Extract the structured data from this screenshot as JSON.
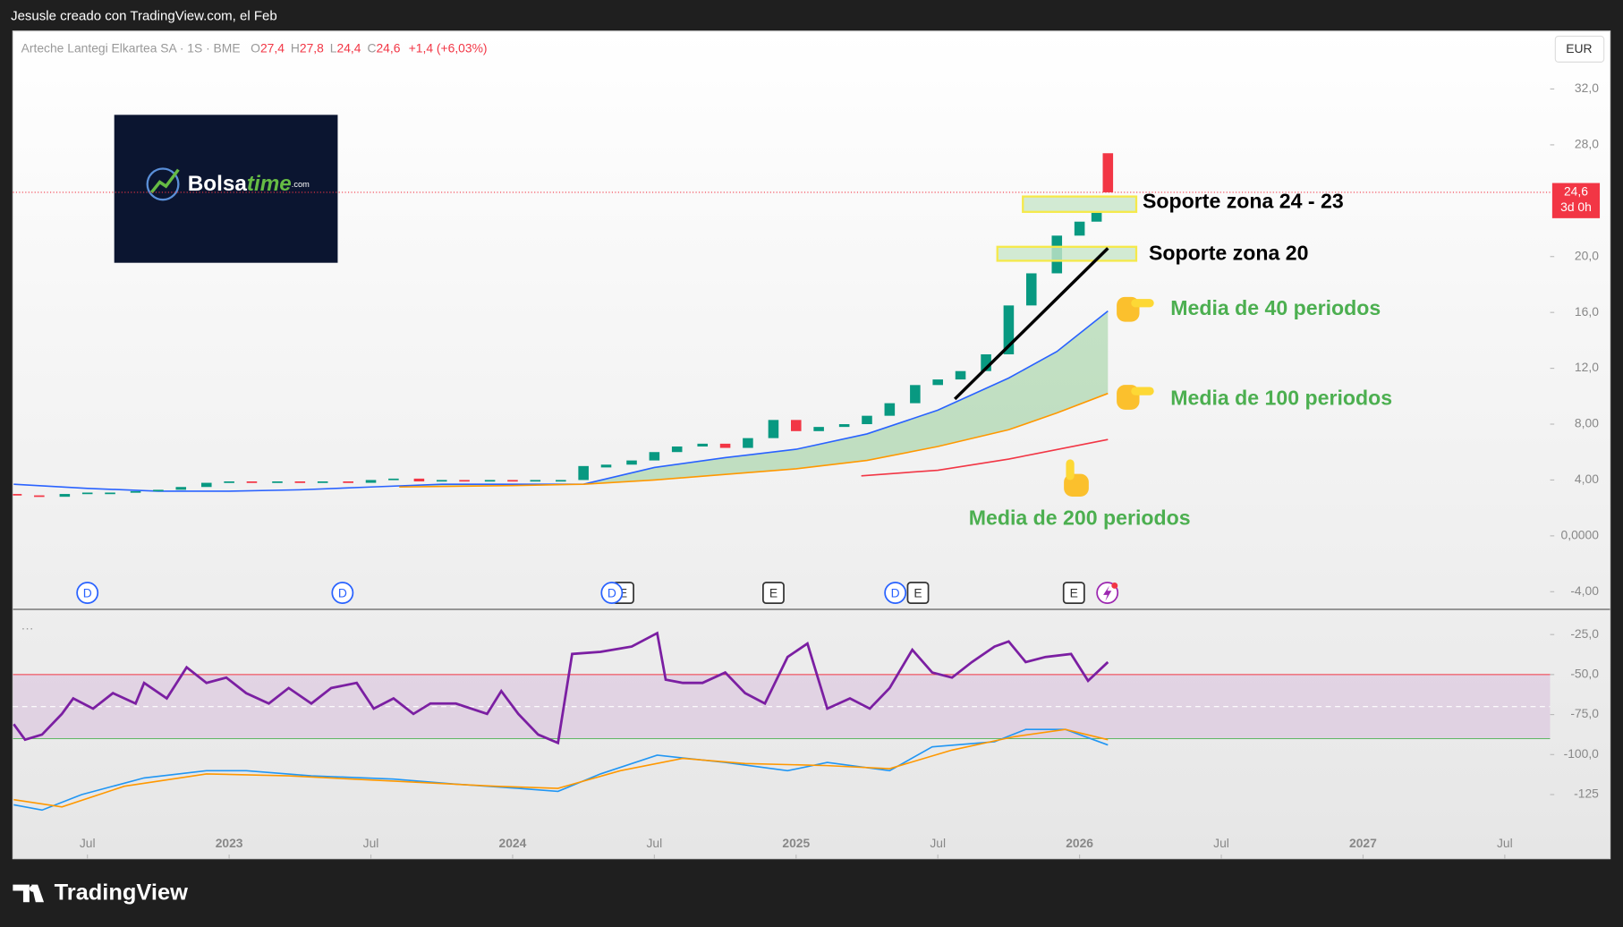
{
  "header": {
    "credit": "Jesusle creado con TradingView.com, el Feb"
  },
  "logo": {
    "name": "Bolsa",
    "accent": "time",
    "suffix": ".com"
  },
  "footer": {
    "brand": "TradingView"
  },
  "chart_data": [
    {
      "type": "candlestick",
      "title": "Arteche Lantegi Elkartea SA · 1S · BME",
      "legend": [
        {
          "key": "O",
          "value": 27.4,
          "label": "27,4"
        },
        {
          "key": "H",
          "value": 27.8,
          "label": "27,8"
        },
        {
          "key": "L",
          "value": 24.4,
          "label": "24,4"
        },
        {
          "key": "C",
          "value": 24.6,
          "label": "24,6"
        }
      ],
      "change": "+1,4 (+6,03%)",
      "currency": "EUR",
      "up_color": "#089981",
      "down_color": "#f23645",
      "x": [
        2022.25,
        2022.33,
        2022.42,
        2022.5,
        2022.58,
        2022.67,
        2022.75,
        2022.83,
        2022.92,
        2023.0,
        2023.08,
        2023.17,
        2023.25,
        2023.33,
        2023.42,
        2023.5,
        2023.58,
        2023.67,
        2023.75,
        2023.83,
        2023.92,
        2024.0,
        2024.08,
        2024.17,
        2024.25,
        2024.33,
        2024.42,
        2024.5,
        2024.58,
        2024.67,
        2024.75,
        2024.83,
        2024.92,
        2025.0,
        2025.08,
        2025.17,
        2025.25,
        2025.33,
        2025.42,
        2025.5,
        2025.58,
        2025.67,
        2025.75,
        2025.83,
        2025.92,
        2026.0,
        2026.06,
        2026.1
      ],
      "open": [
        3.0,
        2.9,
        2.8,
        3.0,
        3.05,
        3.1,
        3.2,
        3.3,
        3.5,
        3.8,
        3.9,
        3.8,
        3.9,
        3.8,
        3.9,
        3.8,
        4.0,
        4.1,
        3.9,
        4.0,
        3.9,
        4.0,
        3.9,
        3.95,
        4.0,
        4.9,
        5.1,
        5.4,
        6.0,
        6.4,
        6.6,
        6.3,
        7.0,
        8.3,
        7.5,
        7.8,
        8.0,
        8.6,
        9.5,
        10.8,
        11.2,
        11.8,
        13.0,
        16.5,
        18.8,
        21.5,
        22.5,
        27.4
      ],
      "close": [
        2.9,
        2.8,
        3.0,
        3.1,
        3.1,
        3.2,
        3.3,
        3.5,
        3.8,
        3.9,
        3.8,
        3.9,
        3.8,
        3.9,
        3.8,
        4.0,
        4.1,
        3.9,
        4.0,
        3.9,
        4.0,
        3.9,
        4.0,
        4.0,
        5.0,
        5.1,
        5.4,
        6.0,
        6.4,
        6.6,
        6.3,
        7.0,
        8.3,
        7.5,
        7.8,
        8.0,
        8.6,
        9.5,
        10.8,
        11.2,
        11.8,
        13.0,
        16.5,
        18.8,
        21.5,
        22.5,
        23.2,
        24.6
      ],
      "series": [
        {
          "color": "#2962ff",
          "x": [
            2022.24,
            2022.5,
            2022.75,
            2023.0,
            2023.25,
            2023.5,
            2023.75,
            2024.0,
            2024.25,
            2024.5,
            2024.75,
            2025.0,
            2025.25,
            2025.5,
            2025.75,
            2025.92,
            2026.1
          ],
          "values": [
            3.7,
            3.4,
            3.2,
            3.2,
            3.3,
            3.5,
            3.7,
            3.7,
            3.7,
            4.9,
            5.6,
            6.2,
            7.3,
            9.0,
            11.3,
            13.2,
            16.1
          ]
        },
        {
          "color": "#ff9800",
          "x": [
            2023.6,
            2024.0,
            2024.25,
            2024.5,
            2024.75,
            2025.0,
            2025.25,
            2025.5,
            2025.75,
            2025.92,
            2026.1
          ],
          "values": [
            3.5,
            3.6,
            3.7,
            4.0,
            4.4,
            4.8,
            5.4,
            6.4,
            7.6,
            8.8,
            10.2
          ]
        },
        {
          "color": "#f23645",
          "x": [
            2025.23,
            2025.5,
            2025.75,
            2026.1
          ],
          "values": [
            4.3,
            4.7,
            5.5,
            6.9
          ]
        }
      ],
      "band_color": "#4caf50",
      "xlim": [
        2022.237,
        2027.66
      ],
      "ylim": [
        -5.19,
        36.15
      ],
      "xticks": [
        {
          "value": 2022.5,
          "label": "Jul"
        },
        2023,
        {
          "value": 2023.5,
          "label": "Jul"
        },
        2024,
        {
          "value": 2024.5,
          "label": "Jul"
        },
        2025,
        {
          "value": 2025.5,
          "label": "Jul"
        },
        2026,
        {
          "value": 2026.5,
          "label": "Jul"
        },
        2027,
        {
          "value": 2027.5,
          "label": "Jul"
        }
      ],
      "yticks": [
        {
          "value": 32,
          "label": "32,0"
        },
        {
          "value": 28,
          "label": "28,0"
        },
        {
          "value": 20,
          "label": "20,0"
        },
        {
          "value": 16,
          "label": "16,0"
        },
        {
          "value": 12,
          "label": "12,0"
        },
        {
          "value": 8,
          "label": "8,00"
        },
        {
          "value": 4,
          "label": "4,00"
        },
        {
          "value": 0,
          "label": "0,0000"
        },
        {
          "value": -4,
          "label": "-4,00"
        }
      ],
      "grid": false,
      "last_price": {
        "value": 24.6,
        "label": "24,6"
      },
      "countdown": "3d 0h",
      "zones": [
        {
          "x": [
            2025.8,
            2026.2
          ],
          "low": 23.2,
          "high": 24.3
        },
        {
          "x": [
            2025.71,
            2026.2
          ],
          "low": 19.7,
          "high": 20.7
        }
      ],
      "trendline": {
        "x": [
          2025.56,
          2026.1
        ],
        "values": [
          9.8,
          20.6
        ]
      },
      "annotations": [
        {
          "text": "Soporte zona 24 - 23",
          "color": "#000000"
        },
        {
          "text": "Soporte zona 20",
          "color": "#000000"
        },
        {
          "text": "Media de 40 periodos",
          "color": "#4caf50"
        },
        {
          "text": "Media de 100 periodos",
          "color": "#4caf50"
        },
        {
          "text": "Media de 200 periodos",
          "color": "#4caf50"
        }
      ],
      "events": [
        {
          "x": 2022.5,
          "label": "D"
        },
        {
          "x": 2023.4,
          "label": "D"
        },
        {
          "x": 2024.39,
          "label": "E"
        },
        {
          "x": 2024.35,
          "label": "D"
        },
        {
          "x": 2024.92,
          "label": "E"
        },
        {
          "x": 2025.43,
          "label": "E"
        },
        {
          "x": 2025.35,
          "label": "D"
        },
        {
          "x": 2025.98,
          "label": "E"
        }
      ]
    },
    {
      "type": "line",
      "menu": "···",
      "series": [
        {
          "color": "#7b1fa2",
          "x": [
            2022.24,
            2022.28,
            2022.34,
            2022.41,
            2022.45,
            2022.52,
            2022.59,
            2022.67,
            2022.7,
            2022.78,
            2022.85,
            2022.92,
            2022.99,
            2023.06,
            2023.14,
            2023.21,
            2023.29,
            2023.36,
            2023.45,
            2023.51,
            2023.58,
            2023.65,
            2023.71,
            2023.8,
            2023.91,
            2023.96,
            2024.02,
            2024.09,
            2024.16,
            2024.21,
            2024.31,
            2024.42,
            2024.51,
            2024.54,
            2024.6,
            2024.67,
            2024.75,
            2024.82,
            2024.89,
            2024.97,
            2025.04,
            2025.11,
            2025.19,
            2025.26,
            2025.33,
            2025.41,
            2025.48,
            2025.55,
            2025.62,
            2025.7,
            2025.75,
            2025.81,
            2025.88,
            2025.97,
            2026.03,
            2026.1
          ],
          "values": [
            -81.0,
            -90.7,
            -87.5,
            -74.6,
            -64.9,
            -71.3,
            -61.6,
            -68.1,
            -55.2,
            -64.9,
            -45.5,
            -55.2,
            -51.9,
            -61.6,
            -68.1,
            -58.4,
            -68.1,
            -58.4,
            -55.2,
            -71.3,
            -64.9,
            -74.6,
            -68.1,
            -68.1,
            -74.6,
            -60.3,
            -74.6,
            -87.5,
            -92.7,
            -37.1,
            -35.8,
            -32.5,
            -24.1,
            -53.2,
            -55.2,
            -55.2,
            -48.7,
            -61.6,
            -68.1,
            -39.0,
            -30.6,
            -71.3,
            -64.9,
            -71.3,
            -58.4,
            -34.5,
            -48.7,
            -51.9,
            -42.2,
            -32.5,
            -29.3,
            -42.2,
            -39.0,
            -37.1,
            -53.9,
            -42.2
          ]
        },
        {
          "color": "#2196f3",
          "x": [
            2022.24,
            2022.34,
            2022.48,
            2022.7,
            2022.92,
            2023.06,
            2023.29,
            2023.58,
            2023.8,
            2024.02,
            2024.16,
            2024.31,
            2024.51,
            2024.75,
            2024.97,
            2025.11,
            2025.33,
            2025.48,
            2025.7,
            2025.81,
            2025.95,
            2026.1
          ],
          "values": [
            -131.4,
            -134.7,
            -125.0,
            -114.6,
            -110.1,
            -110.1,
            -113.3,
            -115.3,
            -118.5,
            -121.1,
            -123.0,
            -112.1,
            -100.4,
            -104.9,
            -110.1,
            -104.9,
            -110.1,
            -95.2,
            -92.0,
            -84.3,
            -84.3,
            -94.0
          ]
        },
        {
          "color": "#ff9800",
          "x": [
            2022.24,
            2022.41,
            2022.63,
            2022.92,
            2023.21,
            2023.58,
            2023.94,
            2024.16,
            2024.38,
            2024.6,
            2024.82,
            2025.11,
            2025.33,
            2025.55,
            2025.77,
            2025.95,
            2026.1
          ],
          "values": [
            -128.2,
            -132.7,
            -119.8,
            -112.1,
            -113.3,
            -116.6,
            -119.8,
            -121.1,
            -110.1,
            -102.4,
            -105.6,
            -106.9,
            -108.8,
            -97.2,
            -88.8,
            -84.3,
            -90.7
          ]
        }
      ],
      "bands": {
        "upper": -50,
        "middle": -70,
        "lower": -90,
        "fill": "#9c27b0"
      },
      "ylim": [
        -165.1,
        -9.9
      ],
      "yticks": [
        {
          "value": -25,
          "label": "-25,0"
        },
        {
          "value": -50,
          "label": "-50,0"
        },
        {
          "value": -75,
          "label": "-75,0"
        },
        {
          "value": -100,
          "label": "-100,0"
        },
        -125
      ]
    }
  ]
}
